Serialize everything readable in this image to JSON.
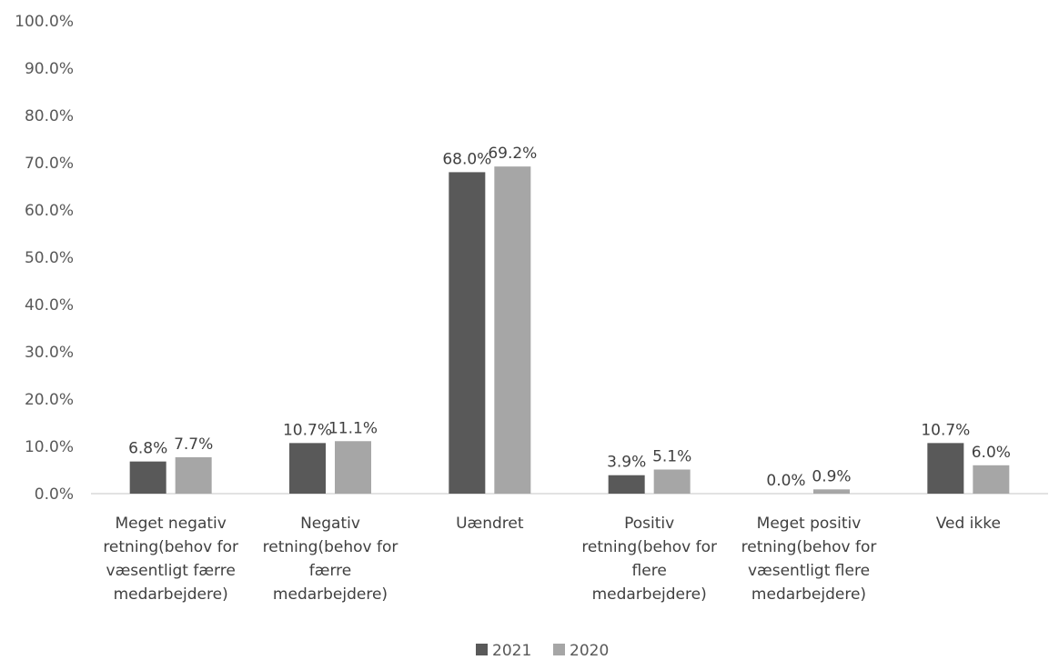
{
  "chart_data": {
    "type": "bar",
    "categories": [
      [
        "Meget negativ",
        "retning(behov for",
        "væsentligt færre",
        "medarbejdere)"
      ],
      [
        "Negativ",
        "retning(behov for",
        "færre",
        "medarbejdere)"
      ],
      [
        "Uændret"
      ],
      [
        "Positiv",
        "retning(behov for",
        "flere",
        "medarbejdere)"
      ],
      [
        "Meget positiv",
        "retning(behov for",
        "væsentligt flere",
        "medarbejdere)"
      ],
      [
        "Ved ikke"
      ]
    ],
    "series": [
      {
        "name": "2021",
        "values": [
          6.8,
          10.7,
          68.0,
          3.9,
          0.0,
          10.7
        ],
        "labels": [
          "6.8%",
          "10.7%",
          "68.0%",
          "3.9%",
          "0.0%",
          "10.7%"
        ],
        "color": "#595959"
      },
      {
        "name": "2020",
        "values": [
          7.7,
          11.1,
          69.2,
          5.1,
          0.9,
          6.0
        ],
        "labels": [
          "7.7%",
          "11.1%",
          "69.2%",
          "5.1%",
          "0.9%",
          "6.0%"
        ],
        "color": "#a6a6a6"
      }
    ],
    "y_ticks": [
      "0.0%",
      "10.0%",
      "20.0%",
      "30.0%",
      "40.0%",
      "50.0%",
      "60.0%",
      "70.0%",
      "80.0%",
      "90.0%",
      "100.0%"
    ],
    "ylim": [
      0,
      100
    ],
    "grid": false,
    "legend_position": "bottom",
    "axis_color": "#d9d9d9"
  }
}
